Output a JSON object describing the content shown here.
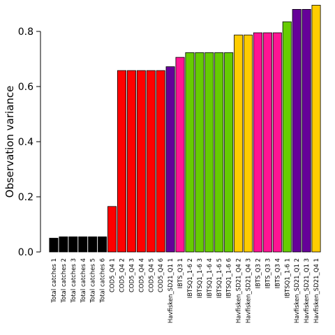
{
  "chart_data": {
    "type": "bar",
    "title": "",
    "xlabel": "",
    "ylabel": "Observation variance",
    "ylim": [
      0,
      0.9
    ],
    "yticks": [
      0.0,
      0.2,
      0.4,
      0.6,
      0.8
    ],
    "ytick_labels": [
      "0.0",
      "0.2",
      "0.4",
      "0.6",
      "0.8"
    ],
    "grid": false,
    "legend": "none",
    "categories": [
      "Total catches 1",
      "Total catches 2",
      "Total catches 3",
      "Total catches 4",
      "Total catches 5",
      "Total catches 6",
      "COD5_Q4 1",
      "COD5_Q4 2",
      "COD5_Q4 3",
      "COD5_Q4 4",
      "COD5_Q4 5",
      "COD5_Q4 6",
      "Havfisken_SD21_Q1 1",
      "IBTS_Q3 1",
      "IBTSQ1_1-6 2",
      "IBTSQ1_1-6 3",
      "IBTSQ1_1-6 4",
      "IBTSQ1_1-6 5",
      "IBTSQ1_1-6 6",
      "Havfisken_SD21_Q4 2",
      "Havfisken_SD21_Q4 3",
      "IBTS_Q3 2",
      "IBTS_Q3 3",
      "IBTS_Q3 4",
      "IBTSQ1_1-6 1",
      "Havfisken_SD21_Q1 2",
      "Havfisken_SD21_Q1 3",
      "Havfisken_SD21_Q4 1"
    ],
    "values": [
      0.05,
      0.055,
      0.055,
      0.055,
      0.055,
      0.055,
      0.165,
      0.658,
      0.658,
      0.658,
      0.658,
      0.658,
      0.672,
      0.706,
      0.723,
      0.723,
      0.723,
      0.723,
      0.723,
      0.787,
      0.787,
      0.795,
      0.795,
      0.795,
      0.835,
      0.88,
      0.88,
      0.895
    ],
    "colors": [
      "#000000",
      "#000000",
      "#000000",
      "#000000",
      "#000000",
      "#000000",
      "#ff0000",
      "#ff0000",
      "#ff0000",
      "#ff0000",
      "#ff0000",
      "#ff0000",
      "#660099",
      "#ff1493",
      "#66cc00",
      "#66cc00",
      "#66cc00",
      "#66cc00",
      "#66cc00",
      "#ffcc00",
      "#ffcc00",
      "#ff1493",
      "#ff1493",
      "#ff1493",
      "#66cc00",
      "#660099",
      "#660099",
      "#ffcc00"
    ]
  }
}
